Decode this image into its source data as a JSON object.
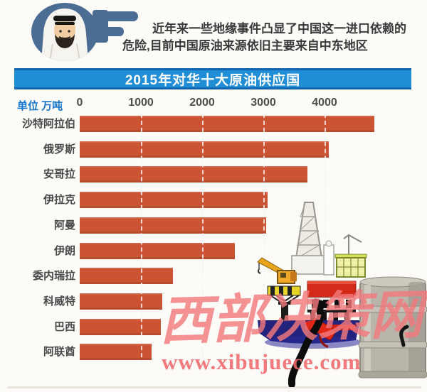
{
  "palette": {
    "accent_blue": "#4b6d94",
    "title_bar_blue": "#1f8ed6",
    "title_border_blue": "#1566b0",
    "bar_red": "#cb5434",
    "unit_label_blue": "#1374cc",
    "gridline_blue": "#c3dde8",
    "watermark_pink": "#f2797c",
    "text_dark": "#3a3a3a"
  },
  "header": {
    "avatar_icon": "arab-man-keffiyeh-icon",
    "bubble_icon": "f-speech-shape",
    "line1": "近年来一些地缘事件凸显了中国这一进口依赖的",
    "line2": "危险,目前中国原油来源依旧主要来自中东地区"
  },
  "title_bar": {
    "text": "2015年对华十大原油供应国"
  },
  "axis": {
    "unit_label": "单位 万吨"
  },
  "chart_data": {
    "type": "bar",
    "orientation": "horizontal",
    "title": "2015年对华十大原油供应国",
    "unit": "万吨",
    "categories": [
      "沙特阿拉伯",
      "俄罗斯",
      "安哥拉",
      "伊拉克",
      "阿曼",
      "伊朗",
      "委内瑞拉",
      "科威特",
      "巴西",
      "阿联酋"
    ],
    "values": [
      4810,
      4070,
      3720,
      3070,
      3050,
      2530,
      1520,
      1350,
      1330,
      1170
    ],
    "xticks": [
      0,
      1000,
      2000,
      3000,
      4000
    ],
    "xlim": [
      0,
      5400
    ],
    "grid": "dashed-vertical",
    "legend": "none",
    "bar_color": "#cb5434"
  },
  "illustration": {
    "scene": "offshore-oil-rig-with-oil-drum-and-dripping-fuel-hose",
    "elements": [
      "oil-derrick-icon",
      "crane-icon",
      "platform-deck-icon",
      "container-cabin-icon",
      "oil-drum-icon",
      "oil-spill-icon",
      "fuel-hose-icon",
      "fuel-nozzle-icon"
    ]
  },
  "watermark": {
    "site_name": "西部决策网",
    "url": "www.xibujuece.com"
  }
}
